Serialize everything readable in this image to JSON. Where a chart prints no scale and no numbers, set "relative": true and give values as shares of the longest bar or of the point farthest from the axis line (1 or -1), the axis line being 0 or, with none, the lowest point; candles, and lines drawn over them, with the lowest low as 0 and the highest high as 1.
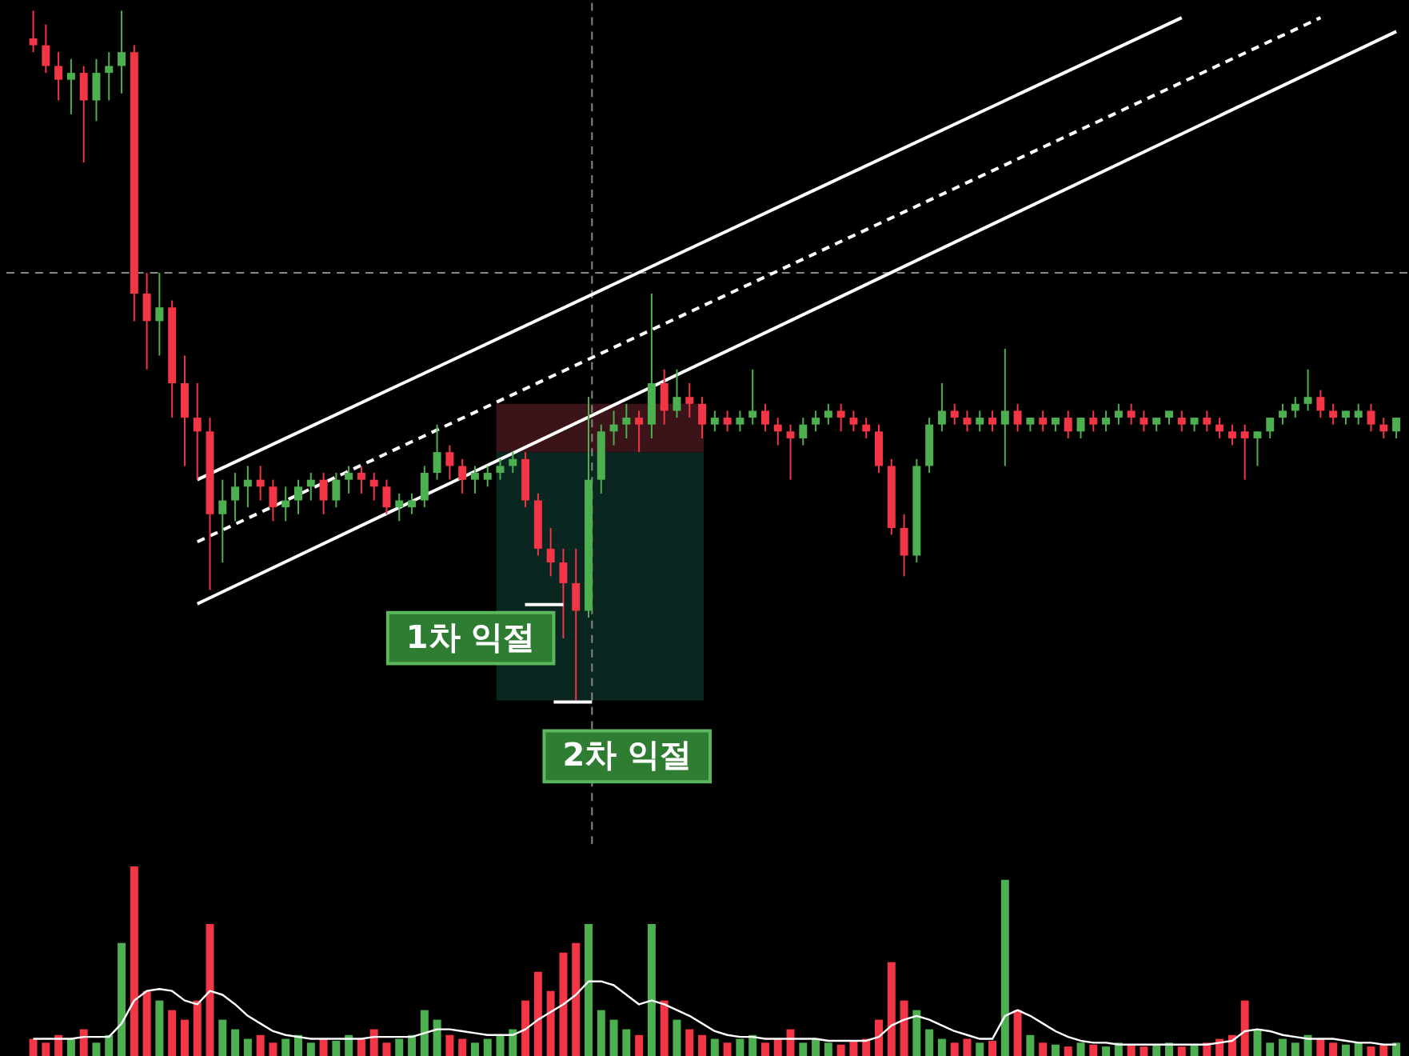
{
  "chart_data": [
    {
      "type": "candlestick",
      "relative": true,
      "categories": [
        null,
        null,
        null,
        null,
        null,
        null,
        null,
        null,
        null,
        null,
        null,
        null,
        null,
        null,
        null,
        null,
        null,
        null,
        null,
        null,
        null,
        null,
        null,
        null,
        null,
        null,
        null,
        null,
        null,
        null,
        null,
        null,
        null,
        null,
        null,
        null,
        null,
        null,
        null,
        null,
        null,
        null,
        null,
        null,
        null,
        null,
        null,
        null,
        null,
        null,
        null,
        null,
        null,
        null,
        null,
        null,
        null,
        null,
        null,
        null,
        null,
        null,
        null,
        null,
        null,
        null,
        null,
        null,
        null,
        null,
        null,
        null,
        null,
        null,
        null,
        null,
        null,
        null,
        null,
        null,
        null,
        null,
        null,
        null,
        null,
        null,
        null,
        null,
        null,
        null,
        null,
        null,
        null,
        null,
        null,
        null,
        null,
        null,
        null,
        null,
        null,
        null,
        null,
        null,
        null,
        null,
        null,
        null,
        null
      ],
      "colors": [
        "#f23645",
        "#f23645",
        "#f23645",
        "#4caf50",
        "#f23645",
        "#4caf50",
        "#4caf50",
        "#4caf50",
        "#f23645",
        "#f23645",
        "#4caf50",
        "#f23645",
        "#f23645",
        "#f23645",
        "#f23645",
        "#4caf50",
        "#4caf50",
        "#4caf50",
        "#f23645",
        "#f23645",
        "#4caf50",
        "#4caf50",
        "#4caf50",
        "#f23645",
        "#4caf50",
        "#4caf50",
        "#f23645",
        "#f23645",
        "#f23645",
        "#4caf50",
        "#4caf50",
        "#4caf50",
        "#4caf50",
        "#f23645",
        "#f23645",
        "#4caf50",
        "#4caf50",
        "#4caf50",
        "#4caf50",
        "#f23645",
        "#f23645",
        "#f23645",
        "#f23645",
        "#f23645",
        "#4caf50",
        "#4caf50",
        "#4caf50",
        "#4caf50",
        "#f23645",
        "#4caf50",
        "#f23645",
        "#4caf50",
        "#f23645",
        "#f23645",
        "#4caf50",
        "#f23645",
        "#4caf50",
        "#4caf50",
        "#f23645",
        "#f23645",
        "#f23645",
        "#4caf50",
        "#4caf50",
        "#4caf50",
        "#f23645",
        "#f23645",
        "#f23645",
        "#f23645",
        "#f23645",
        "#f23645",
        "#4caf50",
        "#4caf50",
        "#4caf50",
        "#f23645",
        "#f23645",
        "#4caf50",
        "#f23645",
        "#4caf50",
        "#f23645",
        "#4caf50",
        "#f23645",
        "#4caf50",
        "#f23645",
        "#4caf50",
        "#f23645",
        "#4caf50",
        "#4caf50",
        "#f23645",
        "#f23645",
        "#4caf50",
        "#4caf50",
        "#f23645",
        "#4caf50",
        "#f23645",
        "#f23645",
        "#f23645",
        "#f23645",
        "#4caf50",
        "#4caf50",
        "#4caf50",
        "#4caf50",
        "#4caf50",
        "#f23645",
        "#f23645",
        "#4caf50",
        "#4caf50",
        "#f23645",
        "#f23645",
        "#4caf50"
      ],
      "ohlc": [
        [
          0.96,
          1.0,
          0.94,
          0.95
        ],
        [
          0.95,
          0.98,
          0.91,
          0.92
        ],
        [
          0.92,
          0.94,
          0.87,
          0.9
        ],
        [
          0.9,
          0.93,
          0.85,
          0.91
        ],
        [
          0.91,
          0.92,
          0.78,
          0.87
        ],
        [
          0.87,
          0.93,
          0.84,
          0.91
        ],
        [
          0.91,
          0.94,
          0.87,
          0.92
        ],
        [
          0.92,
          1.0,
          0.88,
          0.94
        ],
        [
          0.94,
          0.95,
          0.55,
          0.59
        ],
        [
          0.59,
          0.62,
          0.48,
          0.55
        ],
        [
          0.55,
          0.62,
          0.5,
          0.57
        ],
        [
          0.57,
          0.58,
          0.41,
          0.46
        ],
        [
          0.46,
          0.5,
          0.34,
          0.41
        ],
        [
          0.41,
          0.46,
          0.32,
          0.39
        ],
        [
          0.39,
          0.41,
          0.16,
          0.27
        ],
        [
          0.27,
          0.32,
          0.2,
          0.29
        ],
        [
          0.29,
          0.33,
          0.26,
          0.31
        ],
        [
          0.31,
          0.34,
          0.28,
          0.32
        ],
        [
          0.32,
          0.34,
          0.29,
          0.31
        ],
        [
          0.31,
          0.32,
          0.26,
          0.28
        ],
        [
          0.28,
          0.31,
          0.26,
          0.29
        ],
        [
          0.29,
          0.32,
          0.27,
          0.31
        ],
        [
          0.31,
          0.33,
          0.29,
          0.32
        ],
        [
          0.32,
          0.33,
          0.27,
          0.29
        ],
        [
          0.29,
          0.33,
          0.28,
          0.32
        ],
        [
          0.32,
          0.34,
          0.3,
          0.33
        ],
        [
          0.33,
          0.34,
          0.3,
          0.32
        ],
        [
          0.32,
          0.33,
          0.29,
          0.31
        ],
        [
          0.31,
          0.32,
          0.27,
          0.28
        ],
        [
          0.28,
          0.3,
          0.26,
          0.29
        ],
        [
          0.28,
          0.3,
          0.27,
          0.29
        ],
        [
          0.29,
          0.34,
          0.28,
          0.33
        ],
        [
          0.33,
          0.4,
          0.32,
          0.36
        ],
        [
          0.36,
          0.37,
          0.32,
          0.34
        ],
        [
          0.34,
          0.35,
          0.3,
          0.32
        ],
        [
          0.32,
          0.34,
          0.3,
          0.33
        ],
        [
          0.32,
          0.34,
          0.31,
          0.33
        ],
        [
          0.33,
          0.35,
          0.32,
          0.34
        ],
        [
          0.34,
          0.36,
          0.33,
          0.35
        ],
        [
          0.35,
          0.36,
          0.28,
          0.29
        ],
        [
          0.29,
          0.3,
          0.21,
          0.22
        ],
        [
          0.22,
          0.25,
          0.18,
          0.2
        ],
        [
          0.2,
          0.22,
          0.09,
          0.17
        ],
        [
          0.17,
          0.22,
          0.0,
          0.13
        ],
        [
          0.13,
          0.44,
          0.12,
          0.32
        ],
        [
          0.32,
          0.4,
          0.3,
          0.39
        ],
        [
          0.39,
          0.42,
          0.37,
          0.4
        ],
        [
          0.4,
          0.43,
          0.38,
          0.41
        ],
        [
          0.41,
          0.42,
          0.36,
          0.4
        ],
        [
          0.4,
          0.59,
          0.38,
          0.46
        ],
        [
          0.46,
          0.48,
          0.4,
          0.42
        ],
        [
          0.42,
          0.48,
          0.41,
          0.44
        ],
        [
          0.44,
          0.46,
          0.41,
          0.43
        ],
        [
          0.43,
          0.44,
          0.38,
          0.4
        ],
        [
          0.4,
          0.42,
          0.39,
          0.41
        ],
        [
          0.41,
          0.42,
          0.39,
          0.4
        ],
        [
          0.4,
          0.42,
          0.39,
          0.41
        ],
        [
          0.41,
          0.48,
          0.4,
          0.42
        ],
        [
          0.42,
          0.43,
          0.39,
          0.4
        ],
        [
          0.4,
          0.41,
          0.37,
          0.39
        ],
        [
          0.39,
          0.4,
          0.32,
          0.38
        ],
        [
          0.38,
          0.41,
          0.37,
          0.4
        ],
        [
          0.4,
          0.42,
          0.39,
          0.41
        ],
        [
          0.41,
          0.43,
          0.4,
          0.42
        ],
        [
          0.42,
          0.43,
          0.39,
          0.41
        ],
        [
          0.41,
          0.42,
          0.39,
          0.4
        ],
        [
          0.4,
          0.41,
          0.38,
          0.39
        ],
        [
          0.39,
          0.4,
          0.33,
          0.34
        ],
        [
          0.34,
          0.35,
          0.24,
          0.25
        ],
        [
          0.25,
          0.27,
          0.18,
          0.21
        ],
        [
          0.21,
          0.35,
          0.2,
          0.34
        ],
        [
          0.34,
          0.41,
          0.33,
          0.4
        ],
        [
          0.4,
          0.46,
          0.39,
          0.42
        ],
        [
          0.42,
          0.43,
          0.4,
          0.41
        ],
        [
          0.41,
          0.42,
          0.39,
          0.4
        ],
        [
          0.4,
          0.42,
          0.39,
          0.41
        ],
        [
          0.41,
          0.42,
          0.39,
          0.4
        ],
        [
          0.4,
          0.51,
          0.34,
          0.42
        ],
        [
          0.42,
          0.43,
          0.39,
          0.4
        ],
        [
          0.4,
          0.41,
          0.39,
          0.41
        ],
        [
          0.41,
          0.42,
          0.39,
          0.4
        ],
        [
          0.4,
          0.41,
          0.39,
          0.41
        ],
        [
          0.41,
          0.42,
          0.38,
          0.39
        ],
        [
          0.39,
          0.41,
          0.38,
          0.41
        ],
        [
          0.41,
          0.42,
          0.39,
          0.4
        ],
        [
          0.4,
          0.42,
          0.39,
          0.41
        ],
        [
          0.41,
          0.43,
          0.4,
          0.42
        ],
        [
          0.42,
          0.43,
          0.4,
          0.41
        ],
        [
          0.41,
          0.42,
          0.39,
          0.4
        ],
        [
          0.4,
          0.41,
          0.39,
          0.41
        ],
        [
          0.41,
          0.42,
          0.4,
          0.42
        ],
        [
          0.41,
          0.42,
          0.39,
          0.4
        ],
        [
          0.4,
          0.41,
          0.39,
          0.41
        ],
        [
          0.41,
          0.42,
          0.39,
          0.4
        ],
        [
          0.4,
          0.41,
          0.38,
          0.39
        ],
        [
          0.39,
          0.4,
          0.37,
          0.38
        ],
        [
          0.39,
          0.4,
          0.32,
          0.38
        ],
        [
          0.38,
          0.39,
          0.34,
          0.39
        ],
        [
          0.39,
          0.41,
          0.38,
          0.41
        ],
        [
          0.41,
          0.43,
          0.4,
          0.42
        ],
        [
          0.42,
          0.44,
          0.41,
          0.43
        ],
        [
          0.43,
          0.48,
          0.42,
          0.44
        ],
        [
          0.44,
          0.45,
          0.41,
          0.42
        ],
        [
          0.42,
          0.43,
          0.4,
          0.41
        ],
        [
          0.41,
          0.42,
          0.4,
          0.42
        ],
        [
          0.41,
          0.43,
          0.4,
          0.42
        ],
        [
          0.42,
          0.43,
          0.39,
          0.4
        ],
        [
          0.4,
          0.41,
          0.38,
          0.39
        ],
        [
          0.39,
          0.41,
          0.38,
          0.41
        ]
      ],
      "series": [
        {
          "type": "line",
          "color": "#ffffff",
          "values": [
            null,
            null,
            null,
            null,
            null,
            null,
            null,
            null,
            null,
            null,
            null,
            null,
            null,
            0.32,
            null,
            null,
            null,
            null,
            null,
            null,
            null,
            null,
            null,
            null,
            null,
            null,
            null,
            null,
            null,
            null,
            null,
            null,
            null,
            null,
            null,
            null,
            null,
            null,
            null,
            null,
            null,
            null,
            null,
            null,
            null,
            null,
            null,
            null,
            null,
            null,
            null,
            null,
            null,
            null,
            null,
            null,
            null,
            null,
            null,
            null,
            null,
            null,
            null,
            null,
            null,
            null,
            null,
            null,
            null,
            null,
            null,
            null,
            null,
            null,
            null,
            null,
            null,
            null,
            null,
            null,
            null,
            null,
            null,
            null,
            null,
            null,
            null,
            null,
            null,
            null,
            null,
            0.99,
            null,
            null,
            null,
            null,
            null,
            null,
            null,
            null,
            null,
            null,
            null,
            null,
            null,
            null,
            null,
            null,
            null
          ]
        },
        {
          "type": "line",
          "color": "#ffffff",
          "line_style": "dashed",
          "values": [
            null,
            null,
            null,
            null,
            null,
            null,
            null,
            null,
            null,
            null,
            null,
            null,
            null,
            0.23,
            null,
            null,
            null,
            null,
            null,
            null,
            null,
            null,
            null,
            null,
            null,
            null,
            null,
            null,
            null,
            null,
            null,
            null,
            null,
            null,
            null,
            null,
            null,
            null,
            null,
            null,
            null,
            null,
            null,
            null,
            null,
            null,
            null,
            null,
            null,
            null,
            null,
            null,
            null,
            null,
            null,
            null,
            null,
            null,
            null,
            null,
            null,
            null,
            null,
            null,
            null,
            null,
            null,
            null,
            null,
            null,
            null,
            null,
            null,
            null,
            null,
            null,
            null,
            null,
            null,
            null,
            null,
            null,
            null,
            null,
            null,
            null,
            null,
            null,
            null,
            null,
            null,
            null,
            null,
            null,
            null,
            null,
            null,
            null,
            null,
            null,
            null,
            null,
            0.99,
            null,
            null,
            null,
            null,
            null,
            null
          ]
        },
        {
          "type": "line",
          "color": "#ffffff",
          "values": [
            null,
            null,
            null,
            null,
            null,
            null,
            null,
            null,
            null,
            null,
            null,
            null,
            null,
            0.14,
            null,
            null,
            null,
            null,
            null,
            null,
            null,
            null,
            null,
            null,
            null,
            null,
            null,
            null,
            null,
            null,
            null,
            null,
            null,
            null,
            null,
            null,
            null,
            null,
            null,
            null,
            null,
            null,
            null,
            null,
            null,
            null,
            null,
            null,
            null,
            null,
            null,
            null,
            null,
            null,
            null,
            null,
            null,
            null,
            null,
            null,
            null,
            null,
            null,
            null,
            null,
            null,
            null,
            null,
            null,
            null,
            null,
            null,
            null,
            null,
            null,
            null,
            null,
            null,
            null,
            null,
            null,
            null,
            null,
            null,
            null,
            null,
            null,
            null,
            null,
            null,
            null,
            null,
            null,
            null,
            null,
            null,
            null,
            null,
            null,
            null,
            null,
            null,
            null,
            null,
            null,
            null,
            null,
            null,
            0.97
          ]
        }
      ],
      "bands": [
        {
          "axis": "y",
          "from": 0.36,
          "to": 0.43,
          "color": "#3a1418"
        },
        {
          "axis": "y",
          "from": 0.0,
          "to": 0.36,
          "color": "#0a2620"
        }
      ],
      "ref_lines": [
        {
          "axis": "y",
          "value": 0.62,
          "color": "#888888",
          "line_style": "dashed"
        }
      ],
      "annotations": [
        "1차 익절",
        "2차 익절"
      ]
    },
    {
      "type": "bar",
      "relative": true,
      "categories": [
        null,
        null,
        null,
        null,
        null,
        null,
        null,
        null,
        null,
        null,
        null,
        null,
        null,
        null,
        null,
        null,
        null,
        null,
        null,
        null,
        null,
        null,
        null,
        null,
        null,
        null,
        null,
        null,
        null,
        null,
        null,
        null,
        null,
        null,
        null,
        null,
        null,
        null,
        null,
        null,
        null,
        null,
        null,
        null,
        null,
        null,
        null,
        null,
        null,
        null,
        null,
        null,
        null,
        null,
        null,
        null,
        null,
        null,
        null,
        null,
        null,
        null,
        null,
        null,
        null,
        null,
        null,
        null,
        null,
        null,
        null,
        null,
        null,
        null,
        null,
        null,
        null,
        null,
        null,
        null,
        null,
        null,
        null,
        null,
        null,
        null,
        null,
        null,
        null,
        null,
        null,
        null,
        null,
        null,
        null,
        null,
        null,
        null,
        null,
        null,
        null,
        null,
        null,
        null,
        null,
        null,
        null,
        null,
        null
      ],
      "series": [
        {
          "type": "bar",
          "colors": [
            "#f23645",
            "#f23645",
            "#f23645",
            "#4caf50",
            "#f23645",
            "#4caf50",
            "#4caf50",
            "#4caf50",
            "#f23645",
            "#f23645",
            "#4caf50",
            "#f23645",
            "#f23645",
            "#f23645",
            "#f23645",
            "#4caf50",
            "#4caf50",
            "#4caf50",
            "#f23645",
            "#f23645",
            "#4caf50",
            "#4caf50",
            "#4caf50",
            "#f23645",
            "#4caf50",
            "#4caf50",
            "#f23645",
            "#f23645",
            "#f23645",
            "#4caf50",
            "#4caf50",
            "#4caf50",
            "#4caf50",
            "#f23645",
            "#f23645",
            "#4caf50",
            "#4caf50",
            "#4caf50",
            "#4caf50",
            "#f23645",
            "#f23645",
            "#f23645",
            "#f23645",
            "#f23645",
            "#4caf50",
            "#4caf50",
            "#4caf50",
            "#4caf50",
            "#f23645",
            "#4caf50",
            "#f23645",
            "#4caf50",
            "#f23645",
            "#f23645",
            "#4caf50",
            "#f23645",
            "#4caf50",
            "#4caf50",
            "#f23645",
            "#f23645",
            "#f23645",
            "#4caf50",
            "#4caf50",
            "#4caf50",
            "#f23645",
            "#f23645",
            "#f23645",
            "#f23645",
            "#f23645",
            "#f23645",
            "#4caf50",
            "#4caf50",
            "#4caf50",
            "#f23645",
            "#f23645",
            "#4caf50",
            "#f23645",
            "#4caf50",
            "#f23645",
            "#4caf50",
            "#f23645",
            "#4caf50",
            "#f23645",
            "#4caf50",
            "#f23645",
            "#4caf50",
            "#4caf50",
            "#f23645",
            "#f23645",
            "#4caf50",
            "#4caf50",
            "#f23645",
            "#4caf50",
            "#f23645",
            "#f23645",
            "#f23645",
            "#f23645",
            "#4caf50",
            "#4caf50",
            "#4caf50",
            "#4caf50",
            "#4caf50",
            "#f23645",
            "#f23645",
            "#4caf50",
            "#4caf50",
            "#f23645",
            "#f23645",
            "#4caf50"
          ],
          "values": [
            0.1,
            0.08,
            0.12,
            0.1,
            0.15,
            0.08,
            0.12,
            0.6,
            1.0,
            0.35,
            0.3,
            0.25,
            0.2,
            0.3,
            0.7,
            0.2,
            0.15,
            0.1,
            0.12,
            0.08,
            0.1,
            0.12,
            0.08,
            0.1,
            0.09,
            0.12,
            0.1,
            0.15,
            0.08,
            0.1,
            0.12,
            0.25,
            0.2,
            0.12,
            0.1,
            0.08,
            0.1,
            0.12,
            0.15,
            0.3,
            0.45,
            0.35,
            0.55,
            0.6,
            0.7,
            0.25,
            0.2,
            0.15,
            0.12,
            0.7,
            0.3,
            0.2,
            0.15,
            0.12,
            0.1,
            0.08,
            0.1,
            0.12,
            0.08,
            0.1,
            0.15,
            0.08,
            0.1,
            0.08,
            0.07,
            0.09,
            0.1,
            0.2,
            0.5,
            0.3,
            0.25,
            0.15,
            0.1,
            0.08,
            0.1,
            0.08,
            0.09,
            0.93,
            0.25,
            0.12,
            0.08,
            0.07,
            0.06,
            0.08,
            0.07,
            0.06,
            0.08,
            0.07,
            0.06,
            0.07,
            0.08,
            0.06,
            0.07,
            0.08,
            0.1,
            0.12,
            0.3,
            0.15,
            0.08,
            0.1,
            0.08,
            0.12,
            0.1,
            0.08,
            0.07,
            0.08,
            0.06,
            0.07,
            0.08
          ]
        },
        {
          "type": "line",
          "color": "#ffffff",
          "values": [
            0.1,
            0.1,
            0.1,
            0.1,
            0.11,
            0.11,
            0.11,
            0.18,
            0.3,
            0.35,
            0.36,
            0.35,
            0.3,
            0.28,
            0.35,
            0.33,
            0.28,
            0.22,
            0.18,
            0.14,
            0.12,
            0.11,
            0.1,
            0.1,
            0.1,
            0.1,
            0.1,
            0.11,
            0.11,
            0.11,
            0.11,
            0.13,
            0.15,
            0.15,
            0.14,
            0.13,
            0.12,
            0.12,
            0.12,
            0.15,
            0.2,
            0.24,
            0.28,
            0.33,
            0.4,
            0.4,
            0.38,
            0.33,
            0.28,
            0.3,
            0.28,
            0.25,
            0.22,
            0.18,
            0.14,
            0.12,
            0.11,
            0.11,
            0.1,
            0.1,
            0.1,
            0.1,
            0.1,
            0.09,
            0.09,
            0.09,
            0.09,
            0.11,
            0.17,
            0.2,
            0.22,
            0.2,
            0.17,
            0.14,
            0.12,
            0.1,
            0.1,
            0.22,
            0.25,
            0.22,
            0.18,
            0.14,
            0.11,
            0.09,
            0.08,
            0.08,
            0.07,
            0.07,
            0.07,
            0.07,
            0.07,
            0.07,
            0.07,
            0.07,
            0.08,
            0.09,
            0.14,
            0.15,
            0.14,
            0.12,
            0.11,
            0.1,
            0.1,
            0.1,
            0.09,
            0.08,
            0.08,
            0.07,
            0.07
          ]
        }
      ]
    }
  ]
}
